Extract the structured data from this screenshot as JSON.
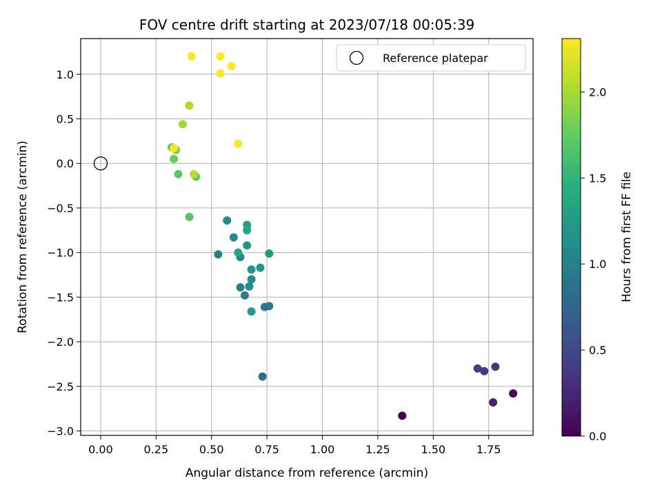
{
  "chart_data": {
    "type": "scatter",
    "title": "FOV centre drift starting at 2023/07/18 00:05:39",
    "xlabel": "Angular distance from reference (arcmin)",
    "ylabel": "Rotation from reference (arcmin)",
    "xlim": [
      -0.09,
      1.95
    ],
    "ylim": [
      -3.05,
      1.4
    ],
    "xticks": [
      0.0,
      0.25,
      0.5,
      0.75,
      1.0,
      1.25,
      1.5,
      1.75
    ],
    "xtick_labels": [
      "0.00",
      "0.25",
      "0.50",
      "0.75",
      "1.00",
      "1.25",
      "1.50",
      "1.75"
    ],
    "yticks": [
      -3.0,
      -2.5,
      -2.0,
      -1.5,
      -1.0,
      -0.5,
      0.0,
      0.5,
      1.0
    ],
    "ytick_labels": [
      "−3.0",
      "−2.5",
      "−2.0",
      "−1.5",
      "−1.0",
      "−0.5",
      "0.0",
      "0.5",
      "1.0"
    ],
    "grid": true,
    "legend": {
      "placement": "top-right",
      "entries": [
        "Reference platepar"
      ]
    },
    "reference": {
      "x": 0.0,
      "y": 0.0,
      "label": "Reference platepar"
    },
    "colorbar": {
      "label": "Hours from first FF file",
      "range": [
        0.0,
        2.31
      ],
      "ticks": [
        0.0,
        0.5,
        1.0,
        1.5,
        2.0
      ],
      "tick_labels": [
        "0.0",
        "0.5",
        "1.0",
        "1.5",
        "2.0"
      ],
      "colormap": "viridis"
    },
    "points": [
      {
        "x": 1.36,
        "y": -2.83,
        "c": 0.0
      },
      {
        "x": 1.86,
        "y": -2.58,
        "c": 0.03
      },
      {
        "x": 1.77,
        "y": -2.68,
        "c": 0.2
      },
      {
        "x": 1.78,
        "y": -2.28,
        "c": 0.38
      },
      {
        "x": 1.73,
        "y": -2.33,
        "c": 0.4
      },
      {
        "x": 1.7,
        "y": -2.3,
        "c": 0.42
      },
      {
        "x": 0.73,
        "y": -2.39,
        "c": 0.85
      },
      {
        "x": 0.76,
        "y": -1.6,
        "c": 0.9
      },
      {
        "x": 0.74,
        "y": -1.61,
        "c": 0.92
      },
      {
        "x": 0.65,
        "y": -1.48,
        "c": 0.95
      },
      {
        "x": 0.63,
        "y": -1.39,
        "c": 1.0
      },
      {
        "x": 0.53,
        "y": -1.02,
        "c": 1.0
      },
      {
        "x": 0.63,
        "y": -1.05,
        "c": 1.05
      },
      {
        "x": 0.6,
        "y": -0.83,
        "c": 1.08
      },
      {
        "x": 0.57,
        "y": -0.64,
        "c": 1.1
      },
      {
        "x": 0.67,
        "y": -1.38,
        "c": 1.12
      },
      {
        "x": 0.68,
        "y": -1.3,
        "c": 1.15
      },
      {
        "x": 0.72,
        "y": -1.17,
        "c": 1.18
      },
      {
        "x": 0.68,
        "y": -1.19,
        "c": 1.2
      },
      {
        "x": 0.66,
        "y": -0.92,
        "c": 1.22
      },
      {
        "x": 0.76,
        "y": -1.01,
        "c": 1.25
      },
      {
        "x": 0.68,
        "y": -1.66,
        "c": 1.27
      },
      {
        "x": 0.66,
        "y": -0.69,
        "c": 1.3
      },
      {
        "x": 0.66,
        "y": -0.75,
        "c": 1.33
      },
      {
        "x": 0.62,
        "y": -1.0,
        "c": 1.35
      },
      {
        "x": 0.4,
        "y": -0.6,
        "c": 1.7
      },
      {
        "x": 0.35,
        "y": -0.12,
        "c": 1.72
      },
      {
        "x": 0.43,
        "y": -0.15,
        "c": 1.74
      },
      {
        "x": 0.32,
        "y": 0.18,
        "c": 1.76
      },
      {
        "x": 0.33,
        "y": 0.05,
        "c": 1.77
      },
      {
        "x": 0.34,
        "y": 0.15,
        "c": 1.8
      },
      {
        "x": 0.37,
        "y": 0.44,
        "c": 1.98
      },
      {
        "x": 0.4,
        "y": 0.65,
        "c": 2.02
      },
      {
        "x": 0.42,
        "y": -0.12,
        "c": 2.05
      },
      {
        "x": 0.41,
        "y": 1.2,
        "c": 2.3
      },
      {
        "x": 0.54,
        "y": 1.2,
        "c": 2.3
      },
      {
        "x": 0.54,
        "y": 1.01,
        "c": 2.3
      },
      {
        "x": 0.59,
        "y": 1.09,
        "c": 2.3
      },
      {
        "x": 0.62,
        "y": 0.22,
        "c": 2.3
      },
      {
        "x": 0.33,
        "y": 0.17,
        "c": 2.31
      }
    ]
  }
}
